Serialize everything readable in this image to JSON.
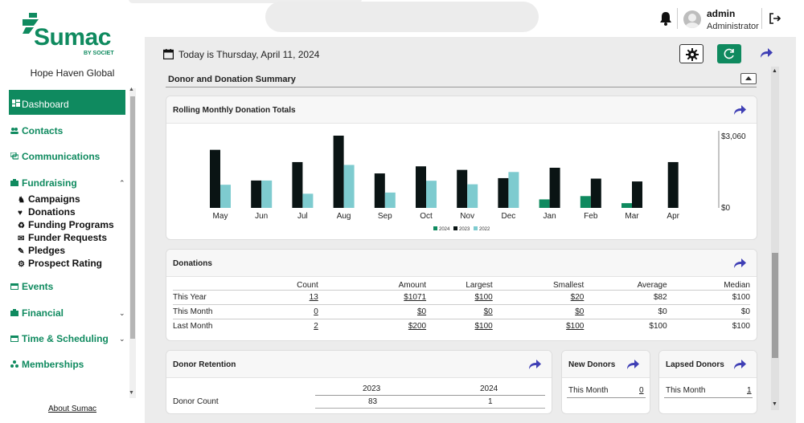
{
  "topbar": {
    "user_name": "admin",
    "user_role": "Administrator"
  },
  "sidebar": {
    "logo_text": "Sumac",
    "logo_sub": "BY SOCIET",
    "org_name": "Hope Haven Global",
    "dashboard": "Dashboard",
    "items": {
      "contacts": "Contacts",
      "communications": "Communications",
      "fundraising": "Fundraising",
      "campaigns": "Campaigns",
      "donations": "Donations",
      "funding_programs": "Funding Programs",
      "funder_requests": "Funder Requests",
      "pledges": "Pledges",
      "prospect_rating": "Prospect Rating",
      "events": "Events",
      "financial": "Financial",
      "time_scheduling": "Time & Scheduling",
      "memberships": "Memberships"
    },
    "about": "About Sumac"
  },
  "main": {
    "date_text": "Today is Thursday, April 11, 2024",
    "section_title": "Donor and Donation Summary",
    "rolling_title": "Rolling Monthly Donation Totals",
    "donations_title": "Donations",
    "retention_title": "Donor Retention",
    "new_donors_title": "New Donors",
    "lapsed_donors_title": "Lapsed Donors"
  },
  "colors": {
    "brand": "#0f8a5f",
    "share_arrow": "#3f3fb5",
    "series_2024": "#0f8a5f",
    "series_2023": "#0a1414",
    "series_2022": "#7ecbcf"
  },
  "chart_data": {
    "type": "bar",
    "title": "Rolling Monthly Donation Totals",
    "categories": [
      "May",
      "Jun",
      "Jul",
      "Aug",
      "Sep",
      "Oct",
      "Nov",
      "Dec",
      "Jan",
      "Feb",
      "Mar",
      "Apr"
    ],
    "series": [
      {
        "name": "2024",
        "values": [
          0,
          0,
          0,
          0,
          0,
          0,
          0,
          0,
          360,
          500,
          200,
          0
        ]
      },
      {
        "name": "2023",
        "values": [
          2460,
          1160,
          1940,
          3060,
          1460,
          1760,
          1610,
          1260,
          1700,
          1240,
          1120,
          1940
        ]
      },
      {
        "name": "2022",
        "values": [
          980,
          1160,
          600,
          1820,
          650,
          1150,
          1000,
          1520,
          0,
          0,
          0,
          0
        ]
      }
    ],
    "y_ticks": [
      "$3,060",
      "$0"
    ],
    "ylim": [
      0,
      3060
    ],
    "legend": [
      "2024",
      "2023",
      "2022"
    ],
    "legend_position": "bottom-center",
    "grid": false
  },
  "donations_table": {
    "columns": [
      "",
      "Count",
      "Amount",
      "Largest",
      "Smallest",
      "Average",
      "Median"
    ],
    "rows": [
      {
        "label": "This Year",
        "count": "13",
        "amount": "$1071",
        "largest": "$100",
        "smallest": "$20",
        "average": "$82",
        "median": "$100"
      },
      {
        "label": "This Month",
        "count": "0",
        "amount": "$0",
        "largest": "$0",
        "smallest": "$0",
        "average": "$0",
        "median": "$0"
      },
      {
        "label": "Last Month",
        "count": "2",
        "amount": "$200",
        "largest": "$100",
        "smallest": "$100",
        "average": "$100",
        "median": "$100"
      }
    ]
  },
  "retention": {
    "years": [
      "2023",
      "2024"
    ],
    "rows": [
      {
        "label": "Donor Count",
        "v1": "83",
        "v2": "1"
      }
    ]
  },
  "new_donors": {
    "rows": [
      {
        "label": "This Month",
        "value": "0"
      }
    ]
  },
  "lapsed_donors": {
    "rows": [
      {
        "label": "This Month",
        "value": "1"
      }
    ]
  }
}
